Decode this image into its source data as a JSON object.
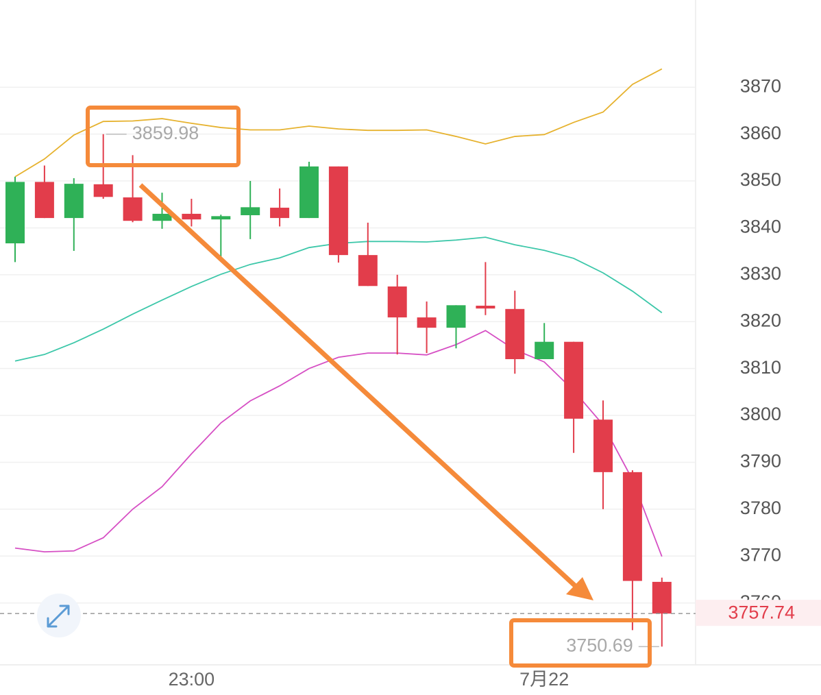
{
  "chart_data": {
    "type": "candlestick",
    "categories": [
      null,
      null,
      null,
      null,
      null,
      null,
      "23:00",
      null,
      null,
      null,
      null,
      null,
      null,
      null,
      null,
      null,
      null,
      null,
      "7月22",
      null,
      null,
      null,
      null
    ],
    "open": [
      3836.7,
      3849.8,
      3842.1,
      3849.3,
      3846.5,
      3841.5,
      3843.0,
      3841.8,
      3842.7,
      3844.3,
      3842.1,
      3853.1,
      3834.2,
      3827.5,
      3820.9,
      3818.7,
      3823.4,
      3822.7,
      3812.0,
      3815.7,
      3799.1,
      3787.9,
      3764.5
    ],
    "high": [
      3850.9,
      3853.3,
      3850.6,
      3859.98,
      3855.5,
      3847.5,
      3846.2,
      3842.8,
      3850.0,
      3848.4,
      3854.1,
      3853.1,
      3841.1,
      3830.0,
      3824.3,
      3823.5,
      3832.7,
      3826.6,
      3819.7,
      3815.7,
      3803.2,
      3788.3,
      3765.4
    ],
    "low": [
      3832.7,
      3842.1,
      3835.1,
      3846.2,
      3841.2,
      3839.8,
      3840.3,
      3833.3,
      3837.6,
      3840.3,
      3842.1,
      3832.6,
      3827.6,
      3813.0,
      3813.3,
      3814.3,
      3821.4,
      3808.9,
      3812.0,
      3792.0,
      3780.0,
      3754.2,
      3750.69
    ],
    "close": [
      3849.8,
      3842.1,
      3849.4,
      3846.6,
      3841.5,
      3843.0,
      3841.8,
      3842.5,
      3844.4,
      3842.1,
      3853.1,
      3834.2,
      3827.6,
      3820.9,
      3818.7,
      3823.5,
      3822.8,
      3812.0,
      3815.7,
      3799.3,
      3787.9,
      3764.7,
      3757.74
    ],
    "up_color": "#2fb157",
    "down_color": "#e23d4b",
    "bands": [
      {
        "color": "#e6b22e",
        "values": [
          3850.9,
          3854.7,
          3859.8,
          3862.7,
          3862.8,
          3863.3,
          3862.3,
          3861.4,
          3860.9,
          3860.9,
          3861.7,
          3861.1,
          3860.8,
          3860.8,
          3860.9,
          3859.5,
          3857.9,
          3859.5,
          3859.9,
          3862.5,
          3864.7,
          3870.6,
          3873.9
        ]
      },
      {
        "color": "#3cc7a9",
        "values": [
          3811.6,
          3813.0,
          3815.5,
          3818.4,
          3821.6,
          3824.6,
          3827.5,
          3830.1,
          3832.2,
          3833.6,
          3835.8,
          3836.7,
          3837.1,
          3837.1,
          3837.0,
          3837.4,
          3838.0,
          3836.4,
          3835.2,
          3833.5,
          3830.4,
          3826.5,
          3821.9
        ]
      },
      {
        "color": "#d64fc4",
        "values": [
          3771.7,
          3770.9,
          3771.1,
          3773.9,
          3780.0,
          3784.8,
          3791.8,
          3798.4,
          3803.1,
          3806.3,
          3810.0,
          3812.4,
          3813.3,
          3813.3,
          3812.9,
          3815.1,
          3818.1,
          3814.0,
          3811.4,
          3805.3,
          3798.0,
          3786.3,
          3769.9
        ]
      }
    ],
    "max_high": 3859.98,
    "min_low": 3750.69,
    "last_price": 3757.74,
    "ylim": [
      3746.8,
      3888.6
    ],
    "yticks": [
      3760,
      3770,
      3780,
      3790,
      3800,
      3810,
      3820,
      3830,
      3840,
      3850,
      3860,
      3870
    ],
    "grid": true
  }
}
